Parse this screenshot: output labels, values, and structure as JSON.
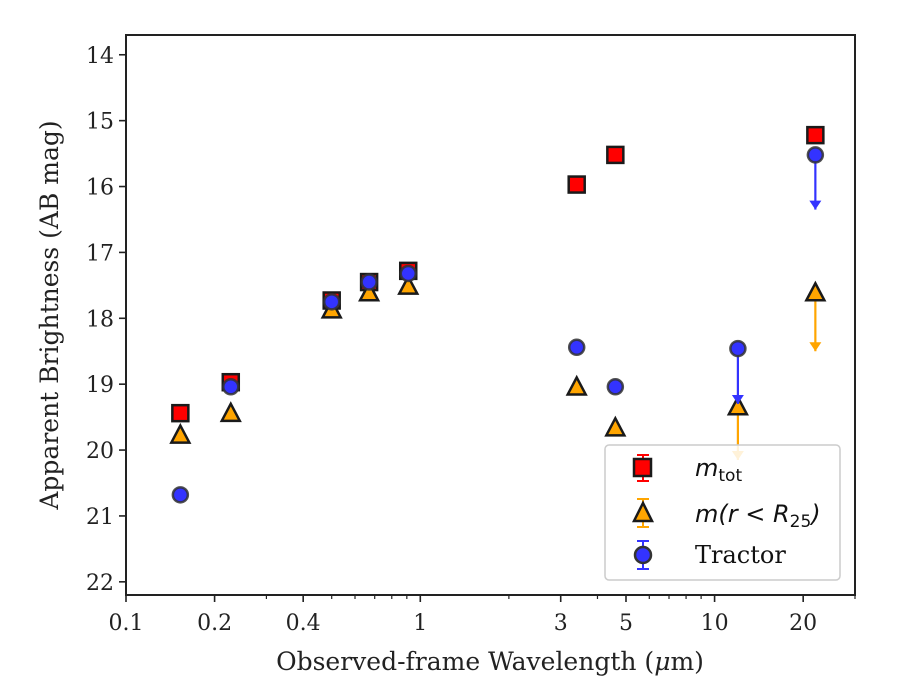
{
  "chart_data": {
    "type": "scatter",
    "xlabel_prefix": "Observed-frame Wavelength (",
    "xlabel_unit": "μ",
    "xlabel_suffix": "m)",
    "ylabel": "Apparent Brightness (AB mag)",
    "x_scale": "log",
    "xlim": [
      0.1,
      30
    ],
    "ylim": [
      22.2,
      13.7
    ],
    "y_inverted": true,
    "x_ticks": [
      0.1,
      0.2,
      0.4,
      1,
      3,
      5,
      10,
      20
    ],
    "x_tick_labels": [
      "0.1",
      "0.2",
      "0.4",
      "1",
      "3",
      "5",
      "10",
      "20"
    ],
    "y_ticks": [
      14,
      15,
      16,
      17,
      18,
      19,
      20,
      21,
      22
    ],
    "y_tick_labels": [
      "14",
      "15",
      "16",
      "17",
      "18",
      "19",
      "20",
      "21",
      "22"
    ],
    "grid": false,
    "legend_position": "bottom-right",
    "series": [
      {
        "key": "mtot",
        "legend_label": "m",
        "legend_subscript": "tot",
        "marker": "square",
        "color": "#ff0000",
        "edge_color": "#1a1a1a",
        "points": [
          {
            "x": 0.153,
            "y": 19.44
          },
          {
            "x": 0.227,
            "y": 18.97
          },
          {
            "x": 0.5,
            "y": 17.73
          },
          {
            "x": 0.67,
            "y": 17.45
          },
          {
            "x": 0.91,
            "y": 17.28
          },
          {
            "x": 3.4,
            "y": 15.97
          },
          {
            "x": 4.6,
            "y": 15.52
          },
          {
            "x": 22,
            "y": 15.22
          }
        ]
      },
      {
        "key": "mr25",
        "legend_label": "m(r < R",
        "legend_subscript": "25",
        "legend_suffix": ")",
        "marker": "triangle",
        "color": "#ffa500",
        "edge_color": "#1a1a1a",
        "points": [
          {
            "x": 0.153,
            "y": 19.78
          },
          {
            "x": 0.227,
            "y": 19.45
          },
          {
            "x": 0.5,
            "y": 17.88
          },
          {
            "x": 0.67,
            "y": 17.62
          },
          {
            "x": 0.91,
            "y": 17.52
          },
          {
            "x": 3.4,
            "y": 19.05
          },
          {
            "x": 4.6,
            "y": 19.67
          },
          {
            "x": 12,
            "y": 19.35,
            "upper_limit_to": 20.15
          },
          {
            "x": 22,
            "y": 17.62,
            "upper_limit_to": 18.5
          }
        ]
      },
      {
        "key": "tractor",
        "legend_label": "Tractor",
        "marker": "circle",
        "color": "#3333ff",
        "edge_color": "#333333",
        "points": [
          {
            "x": 0.153,
            "y": 20.68
          },
          {
            "x": 0.227,
            "y": 19.04
          },
          {
            "x": 0.5,
            "y": 17.75
          },
          {
            "x": 0.67,
            "y": 17.45
          },
          {
            "x": 0.91,
            "y": 17.32
          },
          {
            "x": 3.4,
            "y": 18.44
          },
          {
            "x": 4.6,
            "y": 19.04
          },
          {
            "x": 12,
            "y": 18.46,
            "upper_limit_to": 19.3
          },
          {
            "x": 22,
            "y": 15.52,
            "upper_limit_to": 16.35
          }
        ]
      }
    ]
  }
}
